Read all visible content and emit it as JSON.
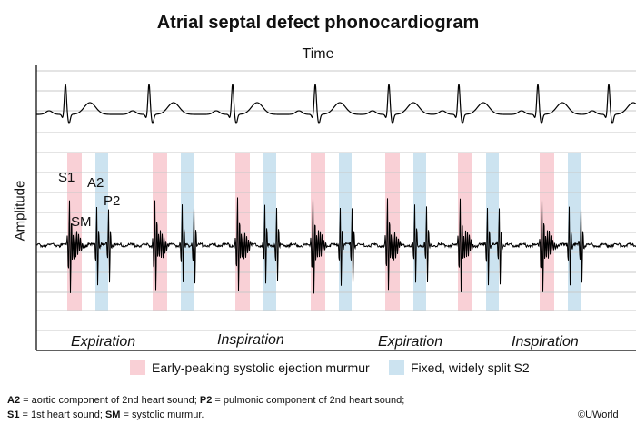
{
  "title": "Atrial septal defect phonocardiogram",
  "axes": {
    "x_label": "Time",
    "y_label": "Amplitude"
  },
  "phases": [
    "Expiration",
    "Inspiration",
    "Expiration",
    "Inspiration"
  ],
  "sound_labels": {
    "s1": "S1",
    "sm": "SM",
    "a2": "A2",
    "p2": "P2"
  },
  "legend": [
    {
      "label": "Early-peaking systolic ejection murmur",
      "color": "#f9d0d6"
    },
    {
      "label": "Fixed, widely split S2",
      "color": "#cce3f0"
    }
  ],
  "footnote": {
    "line1": [
      {
        "text": "A2",
        "bold": true
      },
      {
        "text": " = aortic component of 2nd heart sound; ",
        "bold": false
      },
      {
        "text": "P2",
        "bold": true
      },
      {
        "text": " = pulmonic component of 2nd heart sound;",
        "bold": false
      }
    ],
    "line2": [
      {
        "text": "S1",
        "bold": true
      },
      {
        "text": " = 1st heart sound; ",
        "bold": false
      },
      {
        "text": "SM",
        "bold": true
      },
      {
        "text": " = systolic murmur.",
        "bold": false
      }
    ]
  },
  "copyright": "©UWorld",
  "colors": {
    "murmur_band": "#f9d0d6",
    "s2_band": "#cce3f0",
    "trace": "#000000",
    "grid": "#c8c8c8"
  }
}
